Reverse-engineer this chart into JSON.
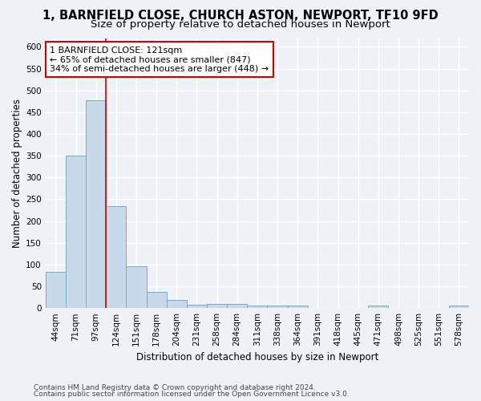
{
  "title": "1, BARNFIELD CLOSE, CHURCH ASTON, NEWPORT, TF10 9FD",
  "subtitle": "Size of property relative to detached houses in Newport",
  "xlabel": "Distribution of detached houses by size in Newport",
  "ylabel": "Number of detached properties",
  "categories": [
    "44sqm",
    "71sqm",
    "97sqm",
    "124sqm",
    "151sqm",
    "178sqm",
    "204sqm",
    "231sqm",
    "258sqm",
    "284sqm",
    "311sqm",
    "338sqm",
    "364sqm",
    "391sqm",
    "418sqm",
    "445sqm",
    "471sqm",
    "498sqm",
    "525sqm",
    "551sqm",
    "578sqm"
  ],
  "values": [
    83,
    350,
    478,
    235,
    97,
    37,
    18,
    8,
    9,
    9,
    5,
    5,
    6,
    0,
    0,
    0,
    6,
    0,
    0,
    0,
    6
  ],
  "bar_color": "#c8d9ea",
  "bar_edge_color": "#7aaac8",
  "property_line_index": 3,
  "property_line_color": "#cc0000",
  "annotation_line1": "1 BARNFIELD CLOSE: 121sqm",
  "annotation_line2": "← 65% of detached houses are smaller (847)",
  "annotation_line3": "34% of semi-detached houses are larger (448) →",
  "annotation_box_facecolor": "#ffffff",
  "annotation_box_edgecolor": "#cc0000",
  "ylim": [
    0,
    620
  ],
  "yticks": [
    0,
    50,
    100,
    150,
    200,
    250,
    300,
    350,
    400,
    450,
    500,
    550,
    600
  ],
  "footer_line1": "Contains HM Land Registry data © Crown copyright and database right 2024.",
  "footer_line2": "Contains public sector information licensed under the Open Government Licence v3.0.",
  "bg_color": "#eef2f7",
  "grid_color": "#ffffff",
  "title_fontsize": 10.5,
  "subtitle_fontsize": 9.5,
  "tick_fontsize": 7.5,
  "label_fontsize": 8.5,
  "footer_fontsize": 6.5,
  "annotation_fontsize": 8
}
